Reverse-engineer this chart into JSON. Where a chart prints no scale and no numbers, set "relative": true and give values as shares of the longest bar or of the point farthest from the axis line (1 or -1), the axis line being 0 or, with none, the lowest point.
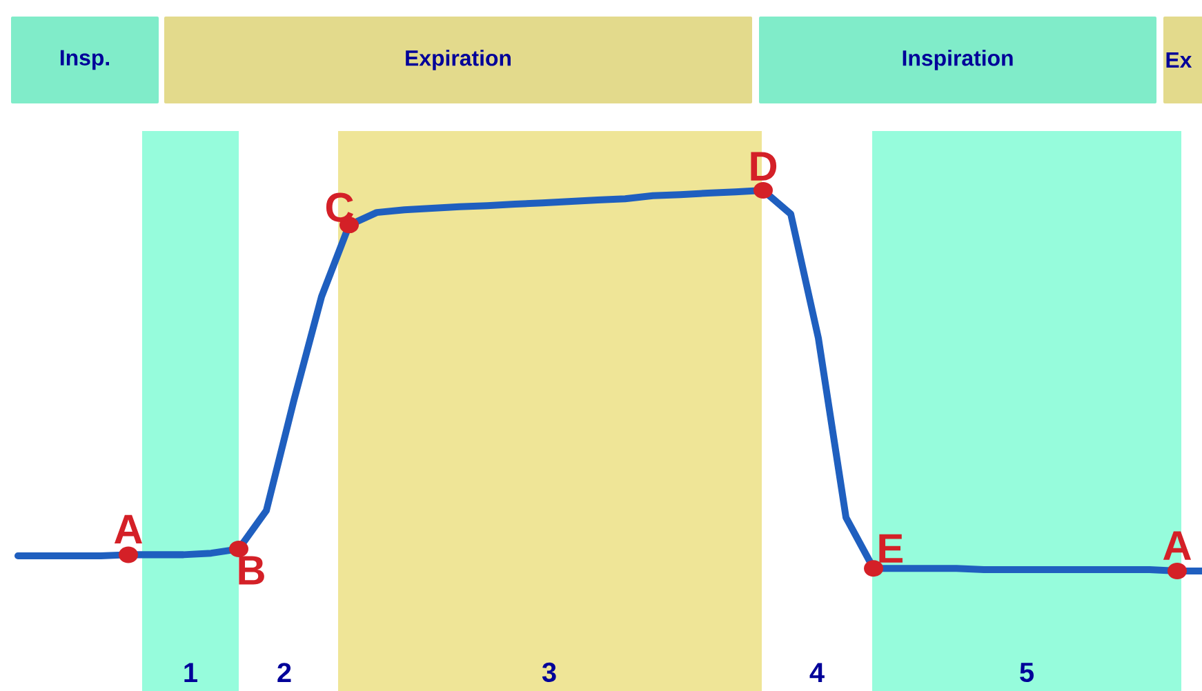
{
  "chart_data": {
    "type": "line",
    "relative": true,
    "marker": "none",
    "line_style": "solid",
    "categories": [
      null,
      null,
      null,
      null,
      null,
      null,
      null,
      null,
      null,
      null,
      null,
      null,
      null,
      null,
      null,
      null,
      null,
      null,
      null,
      null,
      null,
      null,
      null,
      null,
      null,
      null,
      null,
      null,
      null,
      null,
      null,
      null,
      null,
      null,
      null,
      null,
      null,
      null,
      null,
      null,
      null,
      null,
      null,
      null
    ],
    "series": [
      {
        "color": "#1f5fbf",
        "values": [
          0.04,
          0.04,
          0.04,
          0.04,
          0.043,
          0.043,
          0.043,
          0.047,
          0.058,
          0.159,
          0.449,
          0.721,
          0.909,
          0.942,
          0.949,
          0.953,
          0.957,
          0.96,
          0.964,
          0.967,
          0.971,
          0.975,
          0.978,
          0.986,
          0.989,
          0.993,
          0.996,
          1.0,
          0.938,
          0.612,
          0.141,
          0.007,
          0.007,
          0.007,
          0.007,
          0.004,
          0.004,
          0.004,
          0.004,
          0.004,
          0.004,
          0.004,
          0,
          0
        ]
      }
    ],
    "annotations": [
      {
        "text": "A",
        "y": 0.043
      },
      {
        "text": "B",
        "y": 0.058
      },
      {
        "text": "C",
        "y": 0.909
      },
      {
        "text": "D",
        "y": 1.0
      },
      {
        "text": "E",
        "y": 0.007
      },
      {
        "text": "A",
        "y": 0
      },
      "1",
      "2",
      "3",
      "4",
      "5",
      "Insp.",
      "Expiration",
      "Inspiration",
      "Ex"
    ]
  }
}
